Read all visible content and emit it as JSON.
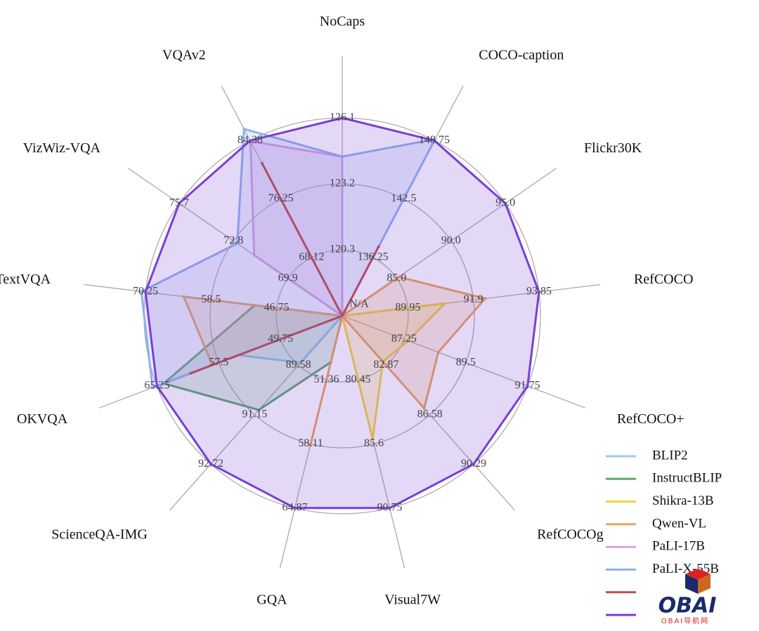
{
  "chart_data": {
    "type": "radar",
    "center_label": "N/A",
    "axes": [
      "NoCaps",
      "COCO-caption",
      "Flickr30K",
      "RefCOCO",
      "RefCOCO+",
      "RefCOCOg",
      "Visual7W",
      "GQA",
      "ScienceQA-IMG",
      "OKVQA",
      "TextVQA",
      "VizWiz-VQA",
      "VQAv2"
    ],
    "axis_ticks": [
      [
        120.3,
        123.2,
        126.1
      ],
      [
        136.25,
        142.5,
        148.75
      ],
      [
        {
          "value": 85,
          "label": "85.0"
        },
        {
          "value": 90,
          "label": "90.0"
        },
        {
          "value": 95,
          "label": "95.0"
        }
      ],
      [
        89.95,
        91.9,
        93.85
      ],
      [
        87.25,
        89.5,
        91.75
      ],
      [
        82.87,
        86.58,
        90.29
      ],
      [
        80.45,
        85.6,
        90.75
      ],
      [
        51.36,
        58.11,
        64.87
      ],
      [
        89.58,
        91.15,
        92.72
      ],
      [
        49.75,
        57.5,
        65.25
      ],
      [
        46.75,
        58.5,
        70.25
      ],
      [
        69.9,
        72.8,
        75.7
      ],
      [
        68.12,
        76.25,
        84.38
      ]
    ],
    "series": [
      {
        "name": "BLIP2",
        "color": "#9cc9ef",
        "values": [
          null,
          null,
          null,
          null,
          null,
          null,
          null,
          null,
          89.5,
          55.0,
          null,
          null,
          null
        ]
      },
      {
        "name": "InstructBLIP",
        "color": "#5aa86c",
        "values": [
          null,
          null,
          null,
          null,
          null,
          null,
          null,
          49.5,
          91.0,
          64.4,
          50.7,
          null,
          null
        ]
      },
      {
        "name": "Shikra-13B",
        "color": "#f4d43c",
        "values": [
          null,
          null,
          null,
          91.05,
          87.4,
          82.6,
          85.2,
          null,
          null,
          null,
          null,
          null,
          null
        ]
      },
      {
        "name": "Qwen-VL",
        "color": "#eca45c",
        "values": [
          null,
          null,
          85.2,
          92.25,
          88.5,
          86.1,
          null,
          58.2,
          null,
          58.3,
          63.4,
          null,
          null
        ]
      },
      {
        "name": "PaLI-17B",
        "color": "#dca0de",
        "values": [
          124.4,
          null,
          null,
          null,
          null,
          null,
          null,
          null,
          null,
          64.3,
          null,
          71.7,
          84.3
        ]
      },
      {
        "name": "PaLI-X-55B",
        "color": "#8fb2ee",
        "values": [
          124.4,
          148.9,
          null,
          null,
          null,
          null,
          null,
          null,
          null,
          65.8,
          71.0,
          72.6,
          86.0
        ]
      },
      {
        "color": "#c0504d",
        "values": [
          null,
          137.4,
          null,
          null,
          null,
          null,
          null,
          null,
          null,
          61.0,
          null,
          null,
          81.2
        ]
      },
      {
        "color": "#7a3ed8",
        "values": [
          126.1,
          148.75,
          95.0,
          93.85,
          91.75,
          90.29,
          90.75,
          64.87,
          92.72,
          65.25,
          70.25,
          75.7,
          84.38
        ]
      }
    ],
    "grid": true
  },
  "watermark": {
    "title": "OBAI",
    "subtitle": "OBAI导航网"
  }
}
